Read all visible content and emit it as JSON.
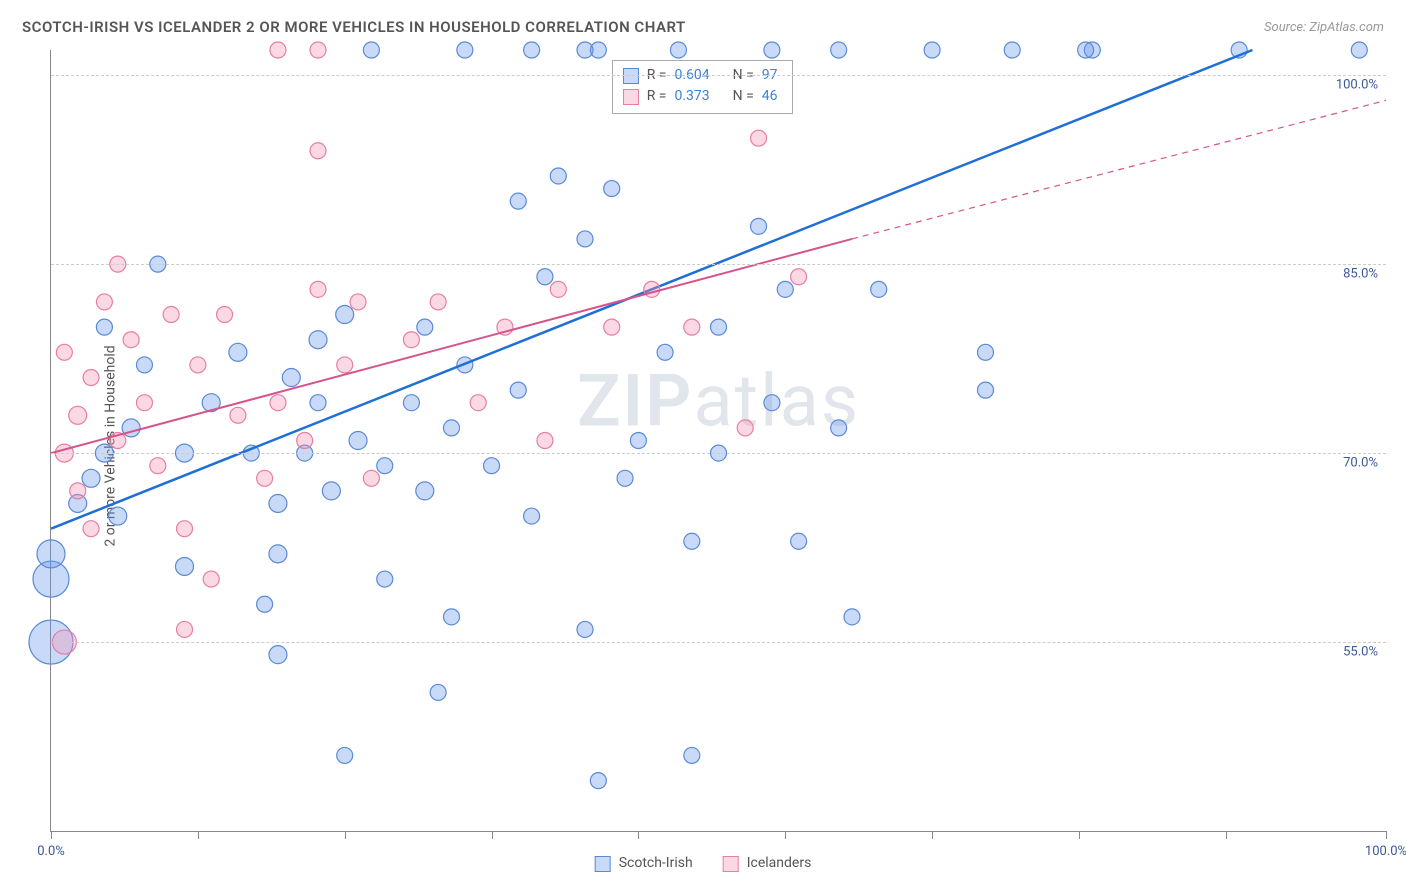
{
  "title": "SCOTCH-IRISH VS ICELANDER 2 OR MORE VEHICLES IN HOUSEHOLD CORRELATION CHART",
  "source": "Source: ZipAtlas.com",
  "ylabel": "2 or more Vehicles in Household",
  "watermark_bold": "ZIP",
  "watermark_light": "atlas",
  "chart": {
    "type": "scatter",
    "background_color": "#ffffff",
    "grid_color": "#cccccc",
    "xlim": [
      0,
      100
    ],
    "ylim": [
      40,
      102
    ],
    "xtick_positions": [
      0,
      11,
      22,
      33,
      44,
      55,
      66,
      77,
      88,
      100
    ],
    "xtick_labels": {
      "0": "0.0%",
      "100": "100.0%"
    },
    "ytick_positions": [
      55,
      70,
      85,
      100
    ],
    "ytick_labels": {
      "55": "55.0%",
      "70": "70.0%",
      "85": "85.0%",
      "100": "100.0%"
    },
    "label_fontsize": 13,
    "label_color": "#3b5998",
    "series": [
      {
        "name": "Scotch-Irish",
        "fill": "rgba(100,149,237,0.35)",
        "stroke": "#5a8ad6",
        "line_color": "#1f6fd4",
        "line_width": 2.5,
        "line_dash": "none",
        "regression": {
          "x0": 0,
          "y0": 64,
          "x1": 90,
          "y1": 102
        },
        "R": "0.604",
        "N": "97",
        "points": [
          {
            "x": 0,
            "y": 55,
            "r": 22
          },
          {
            "x": 0,
            "y": 60,
            "r": 18
          },
          {
            "x": 0,
            "y": 62,
            "r": 14
          },
          {
            "x": 24,
            "y": 102,
            "r": 8
          },
          {
            "x": 31,
            "y": 102,
            "r": 8
          },
          {
            "x": 36,
            "y": 102,
            "r": 8
          },
          {
            "x": 40,
            "y": 102,
            "r": 8
          },
          {
            "x": 41,
            "y": 102,
            "r": 8
          },
          {
            "x": 47,
            "y": 102,
            "r": 8
          },
          {
            "x": 54,
            "y": 102,
            "r": 8
          },
          {
            "x": 59,
            "y": 102,
            "r": 8
          },
          {
            "x": 66,
            "y": 102,
            "r": 8
          },
          {
            "x": 72,
            "y": 102,
            "r": 8
          },
          {
            "x": 78,
            "y": 102,
            "r": 8
          },
          {
            "x": 77.5,
            "y": 102,
            "r": 8
          },
          {
            "x": 89,
            "y": 102,
            "r": 8
          },
          {
            "x": 98,
            "y": 102,
            "r": 8
          },
          {
            "x": 2,
            "y": 66,
            "r": 9
          },
          {
            "x": 3,
            "y": 68,
            "r": 9
          },
          {
            "x": 5,
            "y": 65,
            "r": 9
          },
          {
            "x": 4,
            "y": 70,
            "r": 9
          },
          {
            "x": 6,
            "y": 72,
            "r": 9
          },
          {
            "x": 4,
            "y": 80,
            "r": 8
          },
          {
            "x": 8,
            "y": 85,
            "r": 8
          },
          {
            "x": 7,
            "y": 77,
            "r": 8
          },
          {
            "x": 10,
            "y": 70,
            "r": 9
          },
          {
            "x": 10,
            "y": 61,
            "r": 9
          },
          {
            "x": 12,
            "y": 74,
            "r": 9
          },
          {
            "x": 14,
            "y": 78,
            "r": 9
          },
          {
            "x": 15,
            "y": 70,
            "r": 8
          },
          {
            "x": 18,
            "y": 76,
            "r": 9
          },
          {
            "x": 17,
            "y": 66,
            "r": 9
          },
          {
            "x": 17,
            "y": 62,
            "r": 9
          },
          {
            "x": 20,
            "y": 79,
            "r": 9
          },
          {
            "x": 20,
            "y": 74,
            "r": 8
          },
          {
            "x": 22,
            "y": 81,
            "r": 9
          },
          {
            "x": 19,
            "y": 70,
            "r": 8
          },
          {
            "x": 23,
            "y": 71,
            "r": 9
          },
          {
            "x": 21,
            "y": 67,
            "r": 9
          },
          {
            "x": 16,
            "y": 58,
            "r": 8
          },
          {
            "x": 17,
            "y": 54,
            "r": 9
          },
          {
            "x": 22,
            "y": 46,
            "r": 8
          },
          {
            "x": 25,
            "y": 60,
            "r": 8
          },
          {
            "x": 25,
            "y": 69,
            "r": 8
          },
          {
            "x": 27,
            "y": 74,
            "r": 8
          },
          {
            "x": 28,
            "y": 67,
            "r": 9
          },
          {
            "x": 28,
            "y": 80,
            "r": 8
          },
          {
            "x": 30,
            "y": 57,
            "r": 8
          },
          {
            "x": 29,
            "y": 51,
            "r": 8
          },
          {
            "x": 30,
            "y": 72,
            "r": 8
          },
          {
            "x": 31,
            "y": 77,
            "r": 8
          },
          {
            "x": 33,
            "y": 69,
            "r": 8
          },
          {
            "x": 35,
            "y": 75,
            "r": 8
          },
          {
            "x": 35,
            "y": 90,
            "r": 8
          },
          {
            "x": 36,
            "y": 65,
            "r": 8
          },
          {
            "x": 37,
            "y": 84,
            "r": 8
          },
          {
            "x": 38,
            "y": 92,
            "r": 8
          },
          {
            "x": 40,
            "y": 87,
            "r": 8
          },
          {
            "x": 42,
            "y": 91,
            "r": 8
          },
          {
            "x": 43,
            "y": 68,
            "r": 8
          },
          {
            "x": 40,
            "y": 56,
            "r": 8
          },
          {
            "x": 41,
            "y": 44,
            "r": 8
          },
          {
            "x": 44,
            "y": 71,
            "r": 8
          },
          {
            "x": 46,
            "y": 78,
            "r": 8
          },
          {
            "x": 48,
            "y": 63,
            "r": 8
          },
          {
            "x": 48,
            "y": 46,
            "r": 8
          },
          {
            "x": 50,
            "y": 80,
            "r": 8
          },
          {
            "x": 50,
            "y": 70,
            "r": 8
          },
          {
            "x": 53,
            "y": 88,
            "r": 8
          },
          {
            "x": 54,
            "y": 74,
            "r": 8
          },
          {
            "x": 55,
            "y": 83,
            "r": 8
          },
          {
            "x": 56,
            "y": 63,
            "r": 8
          },
          {
            "x": 59,
            "y": 72,
            "r": 8
          },
          {
            "x": 60,
            "y": 57,
            "r": 8
          },
          {
            "x": 62,
            "y": 83,
            "r": 8
          },
          {
            "x": 70,
            "y": 78,
            "r": 8
          },
          {
            "x": 70,
            "y": 75,
            "r": 8
          }
        ]
      },
      {
        "name": "Icelanders",
        "fill": "rgba(244,143,177,0.35)",
        "stroke": "#e77fa3",
        "line_color": "#d6548b",
        "line_width": 2,
        "line_dash": "dashed_extension",
        "regression_solid": {
          "x0": 0,
          "y0": 70,
          "x1": 60,
          "y1": 87
        },
        "regression_dash": {
          "x0": 60,
          "y0": 87,
          "x1": 100,
          "y1": 98
        },
        "R": "0.373",
        "N": "46",
        "points": [
          {
            "x": 1,
            "y": 55,
            "r": 12
          },
          {
            "x": 17,
            "y": 102,
            "r": 8
          },
          {
            "x": 20,
            "y": 102,
            "r": 8
          },
          {
            "x": 1,
            "y": 70,
            "r": 9
          },
          {
            "x": 2,
            "y": 73,
            "r": 9
          },
          {
            "x": 3,
            "y": 76,
            "r": 8
          },
          {
            "x": 1,
            "y": 78,
            "r": 8
          },
          {
            "x": 4,
            "y": 82,
            "r": 8
          },
          {
            "x": 5,
            "y": 85,
            "r": 8
          },
          {
            "x": 2,
            "y": 67,
            "r": 8
          },
          {
            "x": 3,
            "y": 64,
            "r": 8
          },
          {
            "x": 5,
            "y": 71,
            "r": 8
          },
          {
            "x": 6,
            "y": 79,
            "r": 8
          },
          {
            "x": 7,
            "y": 74,
            "r": 8
          },
          {
            "x": 8,
            "y": 69,
            "r": 8
          },
          {
            "x": 9,
            "y": 81,
            "r": 8
          },
          {
            "x": 10,
            "y": 64,
            "r": 8
          },
          {
            "x": 10,
            "y": 56,
            "r": 8
          },
          {
            "x": 11,
            "y": 77,
            "r": 8
          },
          {
            "x": 12,
            "y": 60,
            "r": 8
          },
          {
            "x": 13,
            "y": 81,
            "r": 8
          },
          {
            "x": 14,
            "y": 73,
            "r": 8
          },
          {
            "x": 16,
            "y": 68,
            "r": 8
          },
          {
            "x": 17,
            "y": 74,
            "r": 8
          },
          {
            "x": 19,
            "y": 71,
            "r": 8
          },
          {
            "x": 20,
            "y": 83,
            "r": 8
          },
          {
            "x": 22,
            "y": 77,
            "r": 8
          },
          {
            "x": 23,
            "y": 82,
            "r": 8
          },
          {
            "x": 20,
            "y": 94,
            "r": 8
          },
          {
            "x": 24,
            "y": 68,
            "r": 8
          },
          {
            "x": 27,
            "y": 79,
            "r": 8
          },
          {
            "x": 29,
            "y": 82,
            "r": 8
          },
          {
            "x": 32,
            "y": 74,
            "r": 8
          },
          {
            "x": 34,
            "y": 80,
            "r": 8
          },
          {
            "x": 37,
            "y": 71,
            "r": 8
          },
          {
            "x": 38,
            "y": 83,
            "r": 8
          },
          {
            "x": 42,
            "y": 80,
            "r": 8
          },
          {
            "x": 45,
            "y": 83,
            "r": 8
          },
          {
            "x": 48,
            "y": 80,
            "r": 8
          },
          {
            "x": 52,
            "y": 72,
            "r": 8
          },
          {
            "x": 53,
            "y": 95,
            "r": 8
          },
          {
            "x": 56,
            "y": 84,
            "r": 8
          }
        ]
      }
    ],
    "legend_top": {
      "x_label": "R =",
      "n_label": "N ="
    },
    "legend_bottom": [
      "Scotch-Irish",
      "Icelanders"
    ]
  }
}
